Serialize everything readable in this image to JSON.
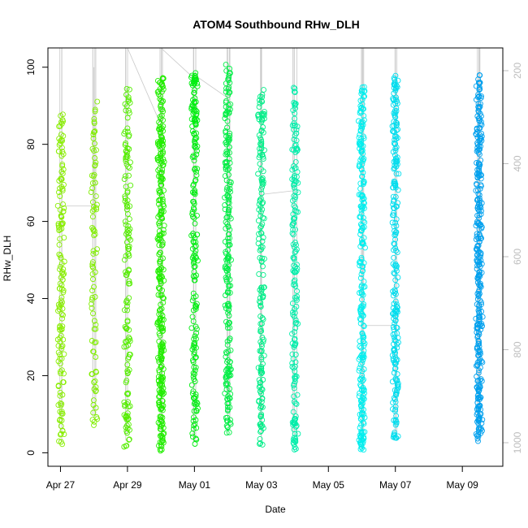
{
  "chart_data": {
    "type": "scatter",
    "title": "ATOM4 Southbound RHw_DLH",
    "xlabel": "Date",
    "ylabel": "RHw_DLH",
    "x_ticks": [
      {
        "date": "2014-04-27",
        "label": "Apr 27"
      },
      {
        "date": "2014-04-29",
        "label": "Apr 29"
      },
      {
        "date": "2014-05-01",
        "label": "May 01"
      },
      {
        "date": "2014-05-03",
        "label": "May 03"
      },
      {
        "date": "2014-05-05",
        "label": "May 05"
      },
      {
        "date": "2014-05-07",
        "label": "May 07"
      },
      {
        "date": "2014-05-09",
        "label": "May 09"
      }
    ],
    "xlim": [
      "2014-04-26T15:00",
      "2014-05-10T05:00"
    ],
    "ylim": [
      -3.5,
      105
    ],
    "y_ticks": [
      0,
      20,
      40,
      60,
      80,
      100
    ],
    "y2_ticks": [
      200,
      400,
      600,
      800,
      1000
    ],
    "y2_direction": "reversed",
    "marker": "open-circle",
    "clusters": [
      {
        "date": "2014-04-27T00:30",
        "y_min": 1,
        "y_max": 88,
        "n": 150,
        "color": "#88ee00"
      },
      {
        "date": "2014-04-28T00:00",
        "y_min": 7,
        "y_max": 92,
        "n": 90,
        "color": "#80ee00"
      },
      {
        "date": "2014-04-29T00:00",
        "y_min": 1.5,
        "y_max": 97,
        "n": 150,
        "color": "#55ee00"
      },
      {
        "date": "2014-04-30T00:00",
        "y_min": 0.5,
        "y_max": 97.5,
        "n": 320,
        "color": "#22ee00"
      },
      {
        "date": "2014-05-01T00:00",
        "y_min": 2,
        "y_max": 100,
        "n": 200,
        "color": "#00ee10"
      },
      {
        "date": "2014-05-02T00:00",
        "y_min": 5,
        "y_max": 101,
        "n": 230,
        "color": "#00ee44"
      },
      {
        "date": "2014-05-03T00:00",
        "y_min": 2,
        "y_max": 95,
        "n": 180,
        "color": "#00ee88"
      },
      {
        "date": "2014-05-04T00:00",
        "y_min": 0.5,
        "y_max": 96,
        "n": 180,
        "color": "#00eeaa"
      },
      {
        "date": "2014-05-06T00:00",
        "y_min": 0.5,
        "y_max": 95,
        "n": 260,
        "color": "#00eeee"
      },
      {
        "date": "2014-05-07T00:00",
        "y_min": 3.5,
        "y_max": 98,
        "n": 230,
        "color": "#00ddee"
      },
      {
        "date": "2014-05-09T12:00",
        "y_min": 3,
        "y_max": 99,
        "n": 320,
        "color": "#00a0ee"
      }
    ],
    "grid": false,
    "legend": "none"
  }
}
